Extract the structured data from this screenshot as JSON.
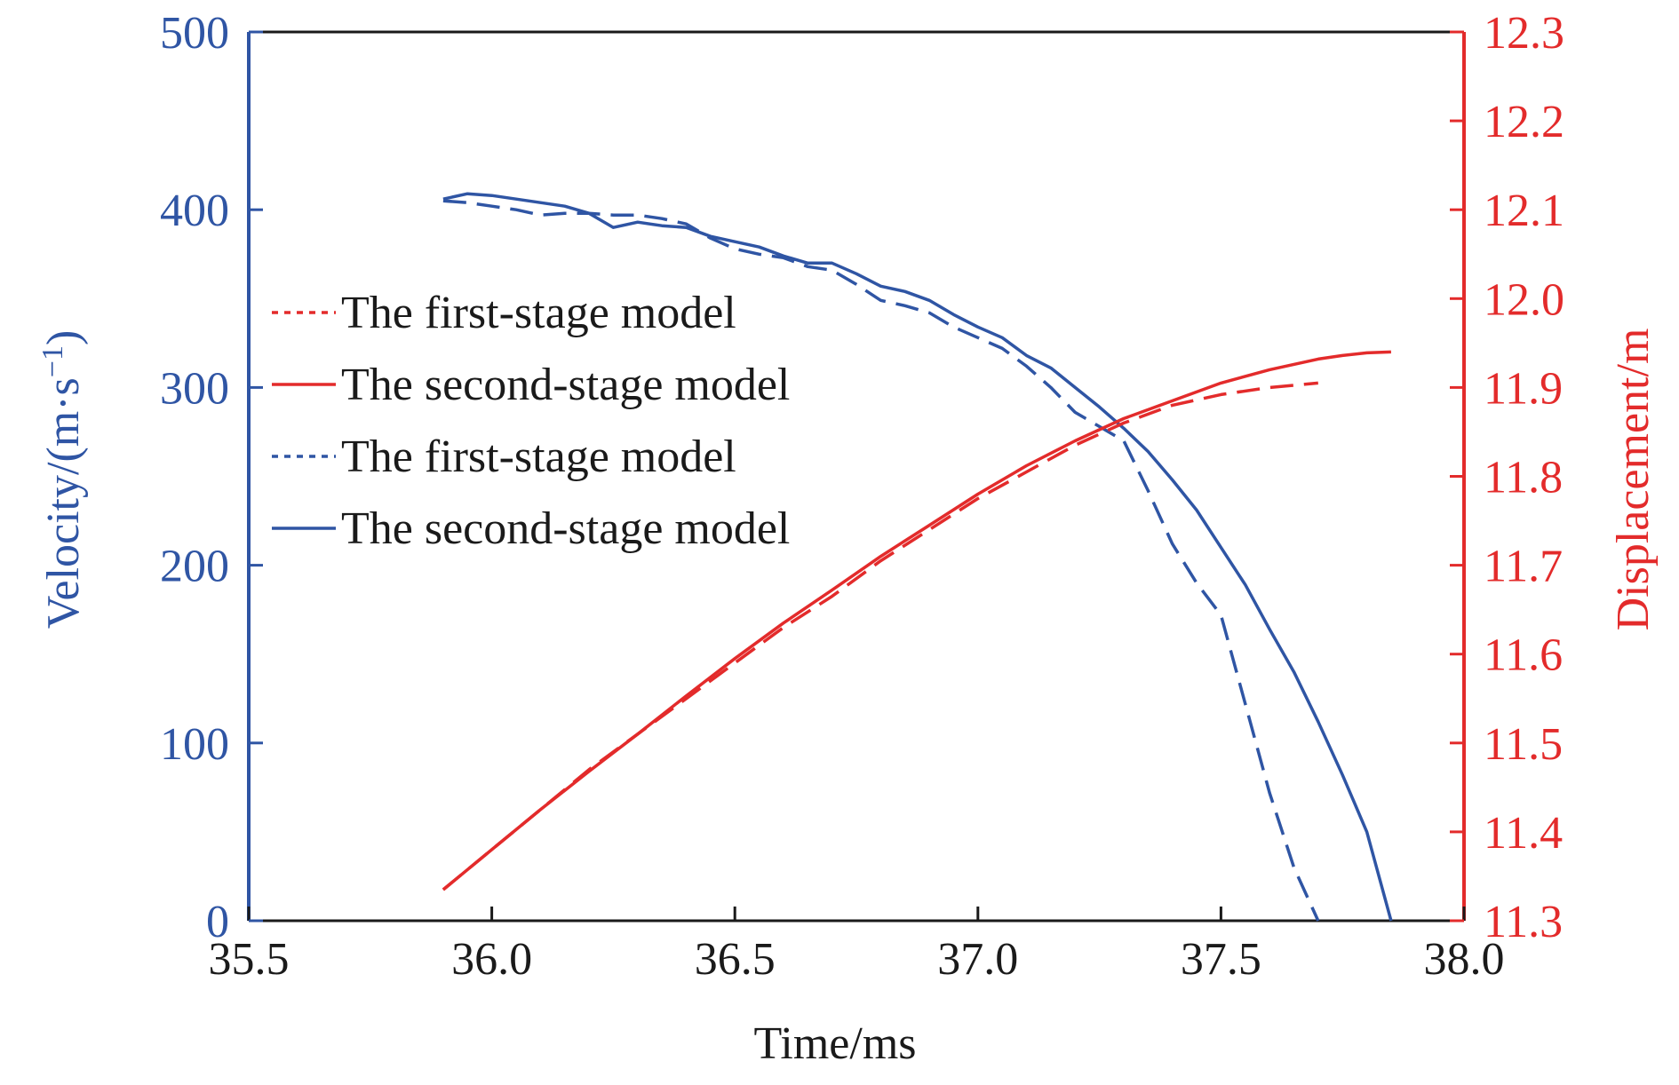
{
  "chart_data": {
    "type": "line",
    "xlabel": "Time/ms",
    "ylabel_left": "Velocity/(m·s",
    "ylabel_left_sup": "−1",
    "ylabel_left_close": ")",
    "ylabel_right": "Displacement/m",
    "xlim": [
      35.5,
      38.0
    ],
    "ylim_left": [
      0,
      500
    ],
    "ylim_right": [
      11.3,
      12.3
    ],
    "x_ticks": [
      "35.5",
      "36.0",
      "36.5",
      "37.0",
      "37.5",
      "38.0"
    ],
    "y_left_ticks": [
      "0",
      "100",
      "200",
      "300",
      "400",
      "500"
    ],
    "y_right_ticks": [
      "11.3",
      "11.4",
      "11.5",
      "11.6",
      "11.7",
      "11.8",
      "11.9",
      "12.0",
      "12.1",
      "12.2",
      "12.3"
    ],
    "grid": false,
    "legend_position": "left-middle",
    "colors": {
      "velocity": "#2f55a4",
      "displacement": "#e32b2b",
      "frame": "#1a1a1a"
    },
    "legend": [
      {
        "label": "The first-stage model",
        "color": "#e32b2b",
        "style": "dotted"
      },
      {
        "label": "The second-stage model",
        "color": "#e32b2b",
        "style": "solid"
      },
      {
        "label": "The first-stage model",
        "color": "#2f55a4",
        "style": "dotted"
      },
      {
        "label": "The second-stage model",
        "color": "#2f55a4",
        "style": "solid"
      }
    ],
    "series": [
      {
        "axis": "left",
        "color": "#2f55a4",
        "style": "dashed",
        "x": [
          35.9,
          35.95,
          36.0,
          36.05,
          36.1,
          36.15,
          36.2,
          36.25,
          36.3,
          36.35,
          36.4,
          36.45,
          36.5,
          36.55,
          36.6,
          36.65,
          36.7,
          36.75,
          36.8,
          36.85,
          36.9,
          36.95,
          37.0,
          37.05,
          37.1,
          37.15,
          37.2,
          37.25,
          37.3,
          37.35,
          37.4,
          37.45,
          37.5,
          37.55,
          37.6,
          37.65,
          37.7
        ],
        "values": [
          405,
          404,
          402,
          400,
          397,
          398,
          398,
          397,
          397,
          395,
          392,
          384,
          378,
          375,
          373,
          368,
          366,
          358,
          349,
          346,
          342,
          334,
          328,
          322,
          312,
          300,
          286,
          278,
          270,
          242,
          212,
          190,
          172,
          122,
          72,
          30,
          0
        ]
      },
      {
        "axis": "left",
        "color": "#2f55a4",
        "style": "solid",
        "x": [
          35.9,
          35.95,
          36.0,
          36.05,
          36.1,
          36.15,
          36.2,
          36.25,
          36.3,
          36.35,
          36.4,
          36.45,
          36.5,
          36.55,
          36.6,
          36.65,
          36.7,
          36.75,
          36.8,
          36.85,
          36.9,
          36.95,
          37.0,
          37.05,
          37.1,
          37.15,
          37.2,
          37.25,
          37.3,
          37.35,
          37.4,
          37.45,
          37.5,
          37.55,
          37.6,
          37.65,
          37.7,
          37.75,
          37.8,
          37.85
        ],
        "values": [
          406,
          409,
          408,
          406,
          404,
          402,
          398,
          390,
          393,
          391,
          390,
          385,
          382,
          379,
          374,
          370,
          370,
          364,
          357,
          354,
          349,
          341,
          334,
          328,
          318,
          311,
          300,
          289,
          277,
          264,
          248,
          231,
          210,
          189,
          164,
          140,
          112,
          82,
          50,
          0
        ]
      },
      {
        "axis": "right",
        "color": "#e32b2b",
        "style": "dashed",
        "x": [
          35.9,
          36.0,
          36.1,
          36.2,
          36.3,
          36.4,
          36.5,
          36.6,
          36.7,
          36.8,
          36.9,
          37.0,
          37.1,
          37.2,
          37.3,
          37.4,
          37.5,
          37.6,
          37.7
        ],
        "values": [
          11.335,
          11.38,
          11.425,
          11.47,
          11.51,
          11.55,
          11.59,
          11.63,
          11.665,
          11.705,
          11.74,
          11.775,
          11.805,
          11.835,
          11.86,
          11.88,
          11.892,
          11.9,
          11.905
        ]
      },
      {
        "axis": "right",
        "color": "#e32b2b",
        "style": "solid",
        "x": [
          35.9,
          36.0,
          36.1,
          36.2,
          36.3,
          36.4,
          36.5,
          36.6,
          36.7,
          36.8,
          36.9,
          37.0,
          37.1,
          37.2,
          37.3,
          37.4,
          37.5,
          37.6,
          37.7,
          37.75,
          37.8,
          37.85
        ],
        "values": [
          11.335,
          11.38,
          11.425,
          11.468,
          11.51,
          11.553,
          11.595,
          11.635,
          11.672,
          11.71,
          11.745,
          11.78,
          11.812,
          11.84,
          11.865,
          11.885,
          11.905,
          11.92,
          11.932,
          11.936,
          11.939,
          11.94
        ]
      }
    ]
  }
}
